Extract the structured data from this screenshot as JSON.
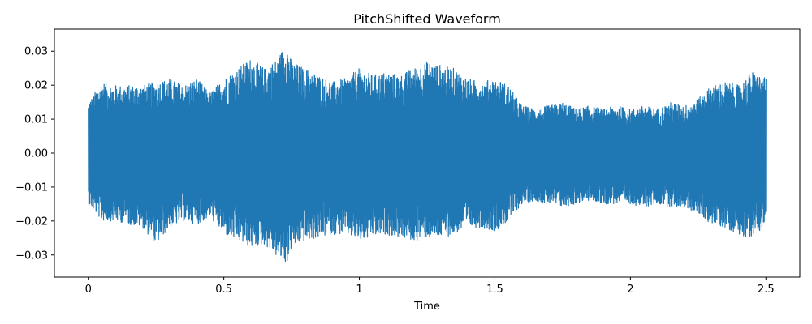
{
  "chart_data": {
    "type": "line",
    "title": "PitchShifted Waveform",
    "xlabel": "Time",
    "ylabel": "",
    "xlim": [
      -0.125,
      2.625
    ],
    "ylim": [
      -0.0365,
      0.0365
    ],
    "xticks": [
      0,
      0.5,
      1,
      1.5,
      2,
      2.5
    ],
    "xtick_labels": [
      "0",
      "0.5",
      "1",
      "1.5",
      "2",
      "2.5"
    ],
    "yticks": [
      -0.03,
      -0.02,
      -0.01,
      0,
      0.01,
      0.02,
      0.03
    ],
    "ytick_labels": [
      "−0.03",
      "−0.02",
      "−0.01",
      "0.00",
      "0.01",
      "0.02",
      "0.03"
    ],
    "grid": false,
    "legend": "none",
    "series": [
      {
        "color": "#1f77b4",
        "envelope": {
          "time": [
            0,
            0.05,
            0.1,
            0.15,
            0.2,
            0.25,
            0.3,
            0.35,
            0.4,
            0.45,
            0.5,
            0.55,
            0.6,
            0.65,
            0.7,
            0.73,
            0.75,
            0.8,
            0.85,
            0.9,
            0.95,
            1.0,
            1.05,
            1.1,
            1.15,
            1.2,
            1.25,
            1.3,
            1.35,
            1.4,
            1.45,
            1.5,
            1.55,
            1.6,
            1.65,
            1.7,
            1.75,
            1.8,
            1.85,
            1.9,
            1.95,
            2.0,
            2.05,
            2.1,
            2.15,
            2.2,
            2.25,
            2.3,
            2.35,
            2.4,
            2.45,
            2.5
          ],
          "upper": [
            0.015,
            0.021,
            0.02,
            0.02,
            0.02,
            0.021,
            0.022,
            0.02,
            0.022,
            0.018,
            0.022,
            0.025,
            0.028,
            0.025,
            0.028,
            0.033,
            0.027,
            0.025,
            0.023,
            0.021,
            0.022,
            0.025,
            0.023,
            0.024,
            0.023,
            0.025,
            0.027,
            0.026,
            0.025,
            0.022,
            0.021,
            0.022,
            0.02,
            0.014,
            0.013,
            0.014,
            0.015,
            0.013,
            0.014,
            0.013,
            0.014,
            0.013,
            0.014,
            0.013,
            0.015,
            0.014,
            0.016,
            0.02,
            0.021,
            0.02,
            0.024,
            0.022
          ],
          "lower": [
            -0.015,
            -0.02,
            -0.02,
            -0.021,
            -0.022,
            -0.027,
            -0.022,
            -0.02,
            -0.021,
            -0.019,
            -0.024,
            -0.026,
            -0.028,
            -0.027,
            -0.031,
            -0.033,
            -0.028,
            -0.026,
            -0.025,
            -0.024,
            -0.024,
            -0.026,
            -0.025,
            -0.024,
            -0.025,
            -0.026,
            -0.025,
            -0.025,
            -0.024,
            -0.022,
            -0.022,
            -0.023,
            -0.02,
            -0.015,
            -0.014,
            -0.015,
            -0.016,
            -0.015,
            -0.014,
            -0.015,
            -0.015,
            -0.015,
            -0.016,
            -0.015,
            -0.016,
            -0.016,
            -0.018,
            -0.021,
            -0.022,
            -0.024,
            -0.025,
            -0.021
          ]
        }
      }
    ]
  }
}
